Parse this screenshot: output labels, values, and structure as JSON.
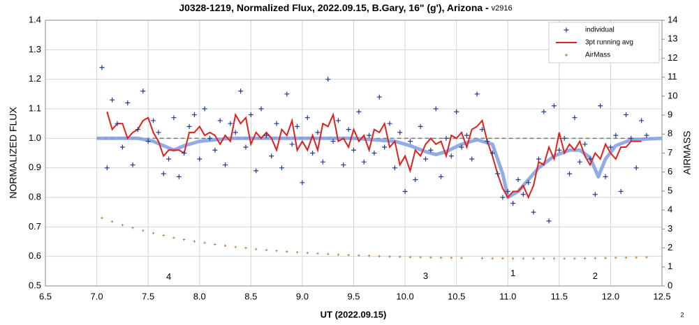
{
  "chart_data": {
    "type": "scatter",
    "title": "J0328-1219, Normalized Flux, 2022.09.15, B.Gary, 16\" (g'), Arizona - ",
    "title_version": "v2916",
    "xlabel": "UT (2022.09.15)",
    "ylabel": "NORMALIZED FLUX",
    "y2label": "AIRMASS",
    "footnote": "2",
    "xlim": [
      6.5,
      12.5
    ],
    "xticks": [
      {
        "value": 6.5,
        "label": "6.5"
      },
      {
        "value": 7,
        "label": "7.0"
      },
      {
        "value": 7.5,
        "label": "7.5"
      },
      {
        "value": 8,
        "label": "8.0"
      },
      {
        "value": 8.5,
        "label": "8.5"
      },
      {
        "value": 9,
        "label": "9.0"
      },
      {
        "value": 9.5,
        "label": "9.5"
      },
      {
        "value": 10,
        "label": "10.0"
      },
      {
        "value": 10.5,
        "label": "10.5"
      },
      {
        "value": 11,
        "label": "11.0"
      },
      {
        "value": 11.5,
        "label": "11.5"
      },
      {
        "value": 12,
        "label": "12.0"
      },
      {
        "value": 12.5,
        "label": "12.5"
      }
    ],
    "ylim": [
      0.5,
      1.4
    ],
    "yticks": [
      0.5,
      0.6,
      0.7,
      0.8,
      0.9,
      {
        "value": 1,
        "label": "1.0"
      },
      1.1,
      1.2,
      1.3,
      1.4
    ],
    "y2lim": [
      0,
      14
    ],
    "y2ticks": [
      0,
      1,
      2,
      3,
      4,
      5,
      6,
      7,
      8,
      9,
      10,
      11,
      12,
      13,
      14
    ],
    "grid": true,
    "legend": "upper right",
    "reference_line": 1,
    "annotations": [
      "4",
      "3",
      "1",
      "2"
    ],
    "x": [
      7.05,
      7.1,
      7.15,
      7.2,
      7.25,
      7.3,
      7.35,
      7.4,
      7.45,
      7.5,
      7.55,
      7.6,
      7.65,
      7.7,
      7.75,
      7.8,
      7.85,
      7.9,
      7.95,
      8.0,
      8.05,
      8.1,
      8.15,
      8.2,
      8.25,
      8.3,
      8.35,
      8.4,
      8.45,
      8.5,
      8.55,
      8.6,
      8.65,
      8.7,
      8.75,
      8.8,
      8.85,
      8.9,
      8.95,
      9.0,
      9.05,
      9.1,
      9.15,
      9.2,
      9.25,
      9.3,
      9.35,
      9.4,
      9.45,
      9.5,
      9.55,
      9.6,
      9.65,
      9.7,
      9.75,
      9.8,
      9.85,
      9.9,
      9.95,
      10.0,
      10.05,
      10.1,
      10.15,
      10.2,
      10.25,
      10.3,
      10.35,
      10.4,
      10.45,
      10.5,
      10.55,
      10.6,
      10.65,
      10.7,
      10.75,
      10.8,
      10.85,
      10.9,
      10.95,
      11.0,
      11.05,
      11.1,
      11.15,
      11.2,
      11.25,
      11.3,
      11.35,
      11.4,
      11.45,
      11.5,
      11.55,
      11.6,
      11.65,
      11.7,
      11.75,
      11.8,
      11.85,
      11.9,
      11.95,
      12.0,
      12.05,
      12.1,
      12.15,
      12.2,
      12.25,
      12.3,
      12.35
    ],
    "series": [
      {
        "name": "individual",
        "kind": "points",
        "color": "#1f3b8c",
        "values": [
          1.24,
          0.9,
          1.13,
          1.05,
          0.97,
          1.12,
          0.91,
          1.03,
          1.16,
          0.99,
          1.06,
          1.02,
          0.88,
          0.93,
          1.07,
          0.87,
          0.95,
          1.04,
          1.08,
          0.93,
          1.1,
          1.0,
          0.96,
          1.06,
          0.91,
          1.05,
          1.02,
          1.16,
          0.97,
          1.08,
          0.89,
          1.1,
          1.01,
          0.94,
          1.05,
          0.9,
          1.15,
          0.98,
          1.04,
          0.85,
          1.07,
          0.95,
          1.02,
          0.92,
          1.2,
          0.99,
          1.06,
          0.91,
          1.03,
          0.96,
          1.09,
          0.92,
          1.01,
          0.95,
          1.14,
          0.97,
          1.05,
          0.9,
          1.02,
          0.82,
          0.99,
          0.86,
          1.04,
          0.93,
          0.96,
          1.1,
          0.87,
          1.0,
          0.94,
          1.09,
          0.97,
          1.01,
          0.93,
          1.15,
          1.03,
          0.99,
          0.95,
          0.88,
          0.8,
          0.82,
          0.78,
          0.86,
          0.81,
          0.85,
          0.75,
          0.93,
          1.09,
          0.72,
          1.11,
          0.96,
          1.0,
          0.88,
          1.07,
          0.92,
          0.98,
          0.93,
          0.81,
          1.11,
          0.87,
          0.97,
          1.01,
          0.82,
          1.08,
          1.0,
          0.9,
          1.06,
          1.01
        ]
      },
      {
        "name": "3pt running avg",
        "kind": "line",
        "color": "#e0201b",
        "values": [
          null,
          1.09,
          1.03,
          1.05,
          1.05,
          1.0,
          1.02,
          1.03,
          1.06,
          1.07,
          1.02,
          0.99,
          0.94,
          0.96,
          0.96,
          0.96,
          0.95,
          1.02,
          1.02,
          1.04,
          1.01,
          1.02,
          1.01,
          0.98,
          1.01,
          0.99,
          1.08,
          1.05,
          1.07,
          0.98,
          1.02,
          1.0,
          1.02,
          1.0,
          0.96,
          1.03,
          1.01,
          1.06,
          0.96,
          0.99,
          0.96,
          1.01,
          0.96,
          1.05,
          1.04,
          1.08,
          0.99,
          1.0,
          0.97,
          1.03,
          0.99,
          1.01,
          0.96,
          1.03,
          1.02,
          1.05,
          0.97,
          0.99,
          0.91,
          0.94,
          0.89,
          0.96,
          0.94,
          0.98,
          1.0,
          0.98,
          0.99,
          0.94,
          1.01,
          1.0,
          1.02,
          0.97,
          1.03,
          1.04,
          1.06,
          0.99,
          0.94,
          0.88,
          0.83,
          0.8,
          0.82,
          0.82,
          0.84,
          0.8,
          0.84,
          0.92,
          0.91,
          0.97,
          0.93,
          1.02,
          0.95,
          0.98,
          0.96,
          0.99,
          0.94,
          0.91,
          0.95,
          0.93,
          0.98,
          0.95,
          0.93,
          0.97,
          0.97,
          0.99,
          0.99,
          0.99,
          null
        ]
      },
      {
        "name": "AirMass",
        "kind": "points-small",
        "color": "#c0742e",
        "axis": "y2",
        "x": [
          7.05,
          7.15,
          7.25,
          7.35,
          7.45,
          7.55,
          7.65,
          7.75,
          7.85,
          7.95,
          8.05,
          8.15,
          8.25,
          8.35,
          8.45,
          8.55,
          8.65,
          8.75,
          8.85,
          8.95,
          9.05,
          9.15,
          9.25,
          9.35,
          9.45,
          9.55,
          9.65,
          9.75,
          9.85,
          9.95,
          10.05,
          10.15,
          10.25,
          10.35,
          10.45,
          10.55,
          10.75,
          10.85,
          10.95,
          11.05,
          11.15,
          11.25,
          11.35,
          11.45,
          11.55,
          11.65,
          11.75,
          11.85,
          11.95,
          12.05,
          12.15,
          12.25,
          12.35
        ],
        "values": [
          3.58,
          3.39,
          3.21,
          3.06,
          2.91,
          2.78,
          2.66,
          2.54,
          2.44,
          2.35,
          2.27,
          2.19,
          2.12,
          2.05,
          2.0,
          1.94,
          1.89,
          1.85,
          1.81,
          1.77,
          1.74,
          1.71,
          1.68,
          1.65,
          1.63,
          1.61,
          1.59,
          1.57,
          1.55,
          1.54,
          1.52,
          1.51,
          1.5,
          1.49,
          1.48,
          1.47,
          1.46,
          1.45,
          1.45,
          1.44,
          1.44,
          1.44,
          1.44,
          1.44,
          1.44,
          1.44,
          1.45,
          1.46,
          1.47,
          1.48,
          1.49,
          1.5,
          1.51
        ]
      },
      {
        "kind": "smooth",
        "color": "#7f9ee0",
        "x": [
          7.0,
          7.4,
          7.55,
          7.65,
          7.75,
          7.85,
          8.0,
          8.3,
          9.5,
          9.9,
          10.05,
          10.2,
          10.3,
          10.4,
          10.55,
          10.7,
          10.85,
          10.95,
          11.0,
          11.1,
          11.3,
          11.45,
          11.6,
          11.7,
          11.8,
          11.88,
          11.95,
          12.05,
          12.2,
          12.5
        ],
        "values": [
          1.0,
          1.0,
          0.99,
          0.975,
          0.96,
          0.975,
          0.99,
          1.0,
          1.0,
          0.99,
          0.975,
          0.955,
          0.945,
          0.955,
          0.98,
          0.995,
          0.98,
          0.88,
          0.8,
          0.82,
          0.9,
          0.94,
          0.96,
          0.96,
          0.935,
          0.87,
          0.93,
          0.975,
          0.995,
          1.0
        ]
      }
    ]
  }
}
